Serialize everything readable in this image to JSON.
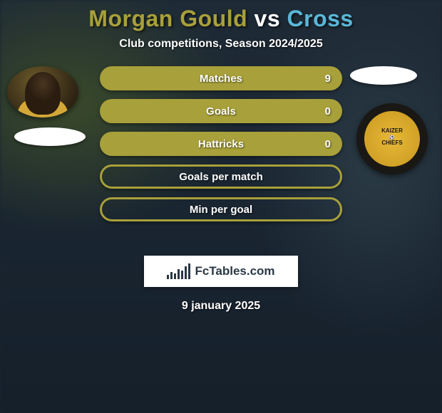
{
  "header": {
    "title_left": "Morgan Gould",
    "title_vs": " vs ",
    "title_right": "Cross",
    "subtitle": "Club competitions, Season 2024/2025",
    "title_left_color": "#a8a03a",
    "title_right_color": "#5ab8d8"
  },
  "stats": {
    "row_color_filled": "#a8a03a",
    "row_color_border": "#a8a03a",
    "rows": [
      {
        "label": "Matches",
        "value": "9",
        "filled": true
      },
      {
        "label": "Goals",
        "value": "0",
        "filled": true
      },
      {
        "label": "Hattricks",
        "value": "0",
        "filled": true
      },
      {
        "label": "Goals per match",
        "value": "",
        "filled": false
      },
      {
        "label": "Min per goal",
        "value": "",
        "filled": false
      }
    ]
  },
  "badge": {
    "line1": "KAIZER",
    "line2": "CHIEFS"
  },
  "branding": {
    "text": "FcTables.com",
    "bar_heights": [
      6,
      10,
      8,
      14,
      12,
      18,
      22
    ]
  },
  "footer": {
    "date": "9 january 2025"
  },
  "colors": {
    "background": "#1a2530",
    "text": "#ffffff"
  }
}
